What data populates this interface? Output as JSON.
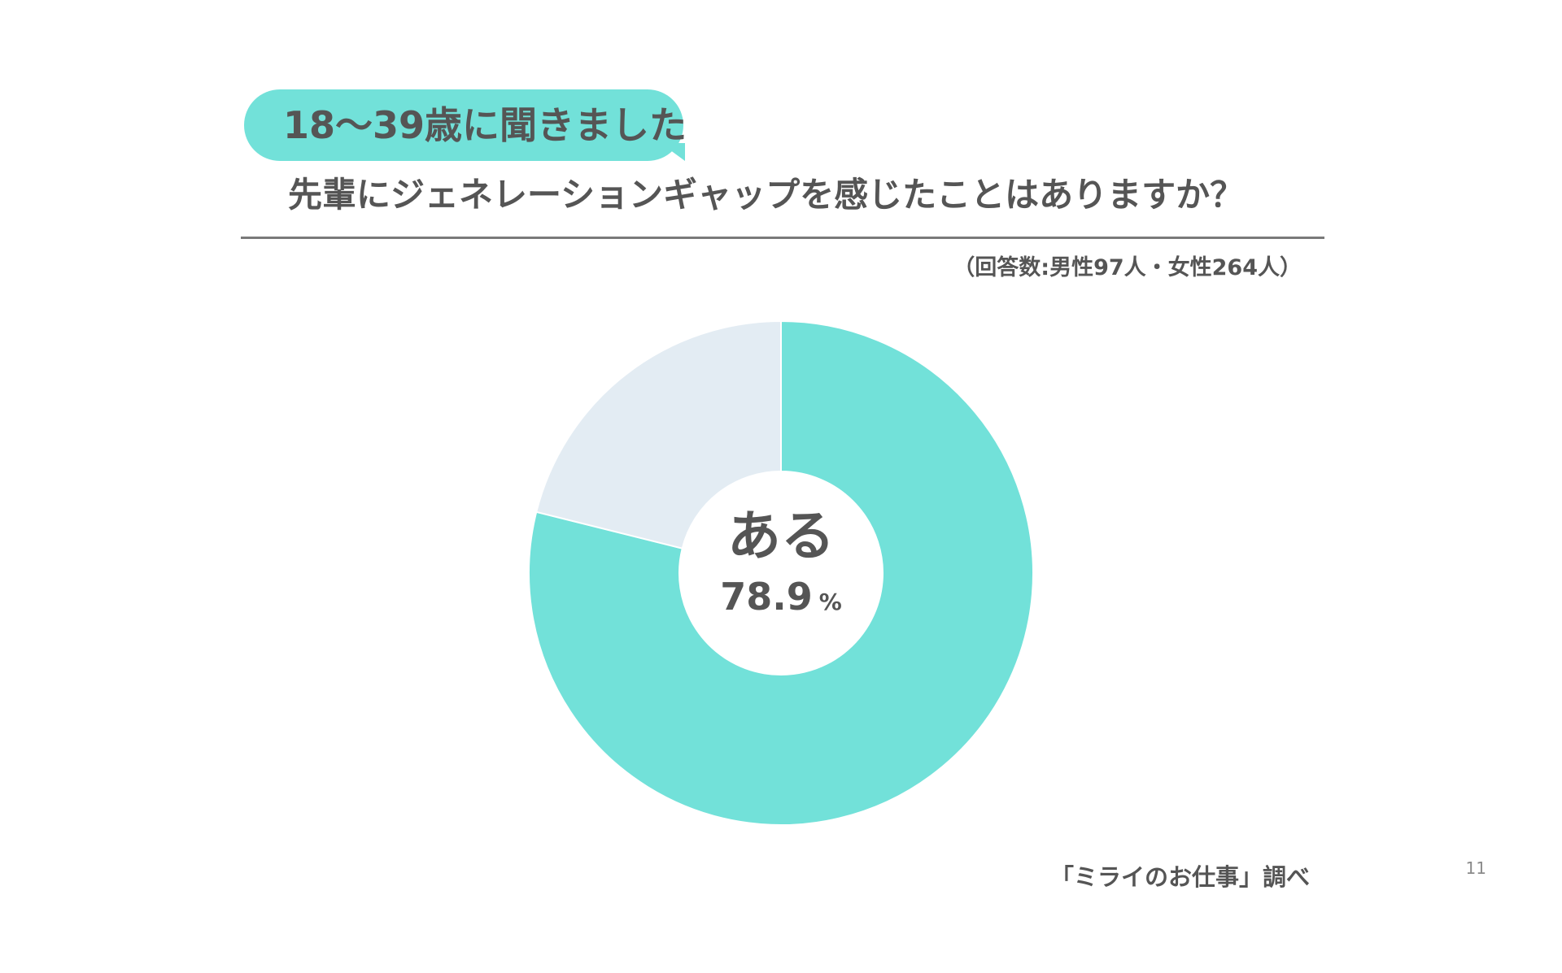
{
  "header": {
    "tag": "18〜39歳に聞きました",
    "question": "先輩にジェネレーションギャップを感じたことはありますか？",
    "respondents": "（回答数:男性97人・女性264人）"
  },
  "chart_data": {
    "type": "pie",
    "categories": [
      "ある",
      ""
    ],
    "values": [
      78.9,
      21.1
    ],
    "colors": [
      "#72e1d9",
      "#e3ecf3"
    ],
    "center_label": "ある",
    "center_value": "78.9",
    "center_unit": "%"
  },
  "footer": {
    "source": "「ミライのお仕事」調べ",
    "page_number": "11"
  }
}
